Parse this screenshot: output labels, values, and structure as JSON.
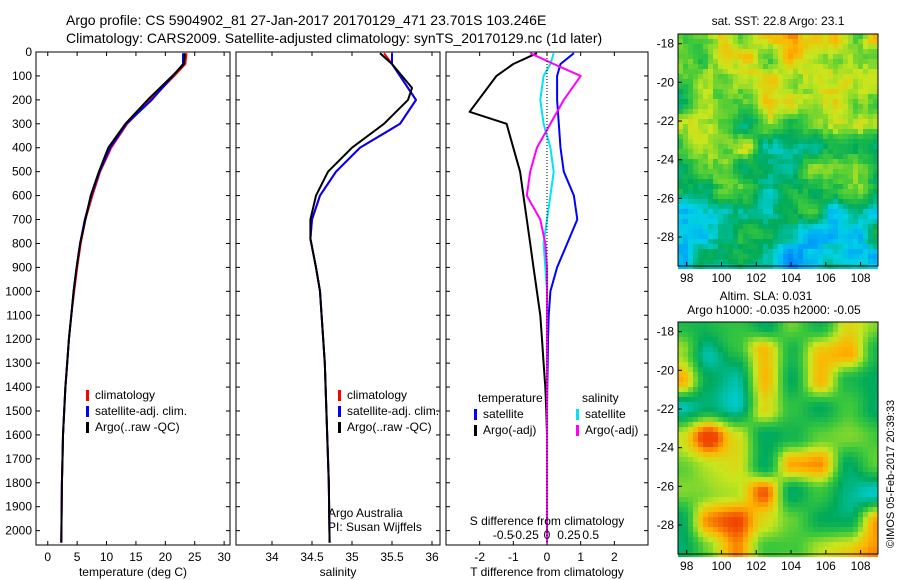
{
  "header": {
    "line1": "Argo profile: CS 5904902_81 27-Jan-2017 20170129_471 23.701S 103.246E",
    "line2": "Climatology: CARS2009. Satellite-adjusted climatology: synTS_20170129.nc (1d later)"
  },
  "credit": "©IMOS 05-Feb-2017 20:39:33",
  "colors": {
    "climatology": "#ff0000",
    "satellite_adj": "#0000ff",
    "argo": "#000000",
    "cyan": "#00e5ee",
    "magenta": "#ff00ff"
  },
  "chart_data": [
    {
      "type": "line",
      "name": "temperature-panel",
      "xlabel": "temperature (deg C)",
      "ylabel": "",
      "xlim": [
        -2,
        31
      ],
      "ylim": [
        2060,
        0
      ],
      "xticks": [
        0,
        5,
        10,
        15,
        20,
        25,
        30
      ],
      "yticks": [
        0,
        100,
        200,
        300,
        400,
        500,
        600,
        700,
        800,
        900,
        1000,
        1100,
        1200,
        1300,
        1400,
        1500,
        1600,
        1700,
        1800,
        1900,
        2000
      ],
      "legend": [
        "climatology",
        "satellite-adj. clim.",
        "Argo(..raw -QC)"
      ],
      "legend_position": "lower-center",
      "series": [
        {
          "name": "climatology",
          "color": "#ff0000",
          "x": [
            23.6,
            23.4,
            21.5,
            17.5,
            13.5,
            10.8,
            8.9,
            7.6,
            6.4,
            5.6,
            5.0,
            4.5,
            4.0,
            3.6,
            3.3,
            3.0,
            2.8,
            2.6,
            2.5,
            2.4,
            2.3
          ],
          "y": [
            5,
            50,
            100,
            200,
            300,
            400,
            500,
            600,
            700,
            800,
            900,
            1000,
            1100,
            1200,
            1300,
            1400,
            1500,
            1600,
            1700,
            1800,
            2050
          ]
        },
        {
          "name": "satellite-adj. clim.",
          "color": "#0000ff",
          "x": [
            23.0,
            23.0,
            21.3,
            17.7,
            13.4,
            10.6,
            8.8,
            7.4,
            6.3,
            5.5,
            4.9,
            4.4,
            4.0,
            3.6,
            3.3,
            3.0,
            2.8,
            2.6,
            2.5,
            2.4,
            2.3
          ],
          "y": [
            5,
            50,
            100,
            200,
            300,
            400,
            500,
            600,
            700,
            800,
            900,
            1000,
            1100,
            1200,
            1300,
            1400,
            1500,
            1600,
            1700,
            1800,
            2050
          ]
        },
        {
          "name": "Argo(..raw -QC)",
          "color": "#000000",
          "x": [
            23.3,
            23.2,
            21.2,
            17.0,
            13.2,
            10.3,
            8.7,
            7.3,
            6.4,
            5.5,
            4.9,
            4.4,
            4.0,
            3.6,
            3.3,
            3.0,
            2.8,
            2.6,
            2.5,
            2.4,
            2.3
          ],
          "y": [
            5,
            50,
            100,
            200,
            300,
            400,
            500,
            600,
            700,
            800,
            900,
            1000,
            1100,
            1200,
            1300,
            1400,
            1500,
            1600,
            1700,
            1800,
            2050
          ]
        }
      ]
    },
    {
      "type": "line",
      "name": "salinity-panel",
      "xlabel": "salinity",
      "ylabel": "",
      "xlim": [
        33.55,
        36.1
      ],
      "ylim": [
        2060,
        0
      ],
      "xticks": [
        34,
        34.5,
        35,
        35.5,
        36
      ],
      "legend": [
        "climatology",
        "satellite-adj. clim.",
        "Argo(..raw -QC)"
      ],
      "legend_position": "lower-right",
      "annotation": [
        "Argo Australia",
        "PI: Susan Wijffels"
      ],
      "series": [
        {
          "name": "climatology",
          "color": "#ff0000",
          "x": [
            35.4,
            35.5,
            35.7,
            35.8,
            35.6,
            35.1,
            34.8,
            34.6,
            34.5,
            34.48,
            34.55,
            34.6,
            34.62,
            34.64,
            34.66,
            34.67,
            34.68,
            34.69,
            34.7,
            34.71,
            34.72
          ],
          "y": [
            5,
            50,
            150,
            200,
            300,
            400,
            500,
            600,
            700,
            780,
            900,
            1000,
            1100,
            1200,
            1300,
            1400,
            1500,
            1600,
            1700,
            1800,
            2050
          ]
        },
        {
          "name": "satellite-adj. clim.",
          "color": "#0000ff",
          "x": [
            35.5,
            35.5,
            35.7,
            35.8,
            35.6,
            35.1,
            34.8,
            34.6,
            34.5,
            34.48,
            34.55,
            34.6,
            34.62,
            34.64,
            34.66,
            34.67,
            34.68,
            34.69,
            34.7,
            34.71,
            34.72
          ],
          "y": [
            5,
            50,
            150,
            200,
            300,
            400,
            500,
            600,
            700,
            780,
            900,
            1000,
            1100,
            1200,
            1300,
            1400,
            1500,
            1600,
            1700,
            1800,
            2050
          ]
        },
        {
          "name": "Argo(..raw -QC)",
          "color": "#000000",
          "x": [
            35.35,
            35.5,
            35.75,
            35.7,
            35.4,
            35.0,
            34.7,
            34.55,
            34.48,
            34.48,
            34.55,
            34.6,
            34.62,
            34.64,
            34.66,
            34.67,
            34.68,
            34.69,
            34.7,
            34.71,
            34.72
          ],
          "y": [
            5,
            50,
            150,
            200,
            300,
            400,
            500,
            600,
            700,
            780,
            900,
            1000,
            1100,
            1200,
            1300,
            1400,
            1500,
            1600,
            1700,
            1800,
            2050
          ]
        }
      ]
    },
    {
      "type": "line",
      "name": "difference-panel",
      "xlabel": "T difference from climatology",
      "xlabel_top": "S difference from climatology",
      "xlim": [
        -3,
        3
      ],
      "ylim": [
        2060,
        0
      ],
      "xticks": [
        -2,
        -1,
        0,
        1,
        2
      ],
      "xticks_top": [
        "-0.5",
        "-0.25",
        "0",
        "0.25",
        "0.5"
      ],
      "legend_headers": [
        "temperature",
        "salinity"
      ],
      "legend": [
        "satellite",
        "Argo(-adj)",
        "satellite",
        "Argo(-adj)"
      ],
      "legend_position": "lower-center",
      "series": [
        {
          "name": "T satellite",
          "color": "#0000ff",
          "x": [
            0.8,
            0.4,
            0.3,
            0.3,
            0.35,
            0.4,
            0.5,
            0.8,
            0.9,
            0.6,
            0.3,
            0.1,
            0.05,
            0.03,
            0.02,
            0.01,
            0.0,
            0.0,
            0.0,
            0.0,
            0.0
          ],
          "y": [
            5,
            50,
            100,
            200,
            300,
            400,
            500,
            600,
            700,
            800,
            900,
            1000,
            1100,
            1200,
            1300,
            1400,
            1500,
            1600,
            1700,
            1800,
            2050
          ]
        },
        {
          "name": "T Argo(-adj)",
          "color": "#000000",
          "x": [
            -0.3,
            -1.0,
            -1.5,
            -2.3,
            -1.2,
            -1.0,
            -0.8,
            -0.7,
            -0.6,
            -0.5,
            -0.4,
            -0.3,
            -0.2,
            -0.15,
            -0.1,
            -0.05,
            -0.02,
            0.0,
            0.0,
            0.0,
            0.0
          ],
          "y": [
            5,
            50,
            100,
            250,
            300,
            400,
            500,
            600,
            700,
            800,
            900,
            1000,
            1100,
            1200,
            1300,
            1400,
            1500,
            1600,
            1700,
            1800,
            2050
          ]
        },
        {
          "name": "S satellite",
          "color": "#00e5ee",
          "x": [
            0.2,
            0.1,
            -0.1,
            -0.2,
            -0.1,
            0.1,
            0.2,
            0.1,
            0.0,
            -0.1,
            -0.05,
            0.0,
            0.0,
            0.0,
            0.0,
            0.0,
            0.0,
            0.0,
            0.0,
            0.0,
            0.0
          ],
          "y": [
            5,
            50,
            100,
            200,
            300,
            400,
            500,
            600,
            700,
            800,
            900,
            1000,
            1100,
            1200,
            1300,
            1400,
            1500,
            1600,
            1700,
            1800,
            2050
          ]
        },
        {
          "name": "S Argo(-adj)",
          "color": "#ff00ff",
          "x": [
            -0.5,
            0.2,
            1.0,
            0.5,
            0.1,
            -0.3,
            -0.5,
            -0.6,
            -0.2,
            -0.05,
            0.0,
            0.0,
            0.0,
            0.0,
            0.0,
            0.0,
            0.0,
            0.0,
            0.0,
            0.0,
            0.0
          ],
          "y": [
            5,
            50,
            100,
            200,
            300,
            400,
            500,
            600,
            700,
            800,
            900,
            1000,
            1100,
            1200,
            1300,
            1400,
            1500,
            1600,
            1700,
            1800,
            2050
          ]
        }
      ]
    },
    {
      "type": "heatmap",
      "name": "sst-map",
      "title": "sat. SST: 22.8 Argo: 23.1",
      "xlim": [
        97.5,
        109
      ],
      "ylim": [
        -29.5,
        -17.5
      ],
      "xticks": [
        98,
        100,
        102,
        104,
        106,
        108
      ],
      "yticks": [
        -18,
        -20,
        -22,
        -24,
        -26,
        -28
      ]
    },
    {
      "type": "heatmap",
      "name": "sla-map",
      "title": "Altim. SLA: 0.031",
      "subtitle": "Argo h1000: -0.035 h2000: -0.05",
      "xlim": [
        97.5,
        109
      ],
      "ylim": [
        -29.5,
        -17.5
      ],
      "xticks": [
        98,
        100,
        102,
        104,
        106,
        108
      ],
      "yticks": [
        -18,
        -20,
        -22,
        -24,
        -26,
        -28
      ]
    }
  ]
}
